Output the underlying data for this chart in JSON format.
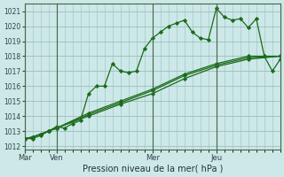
{
  "title": "",
  "xlabel": "Pression niveau de la mer( hPa )",
  "ylabel": "",
  "ylim": [
    1011.8,
    1021.5
  ],
  "yticks": [
    1012,
    1013,
    1014,
    1015,
    1016,
    1017,
    1018,
    1019,
    1020,
    1021
  ],
  "xlim": [
    0,
    192
  ],
  "bg_color": "#cde8e8",
  "grid_color": "#9bbfbf",
  "line_color": "#1a6b1a",
  "day_labels": [
    "Mar",
    "Ven",
    "Mer",
    "Jeu"
  ],
  "day_positions": [
    0,
    24,
    96,
    144
  ],
  "series": [
    {
      "x": [
        0,
        6,
        12,
        18,
        24,
        30,
        36,
        42,
        48,
        54,
        60,
        66,
        72,
        78,
        84,
        90,
        96,
        102,
        108,
        114,
        120,
        126,
        132,
        138,
        144,
        150,
        156,
        162,
        168,
        174,
        180,
        186,
        192
      ],
      "y": [
        1012.5,
        1012.5,
        1012.7,
        1013.0,
        1013.3,
        1013.2,
        1013.5,
        1013.7,
        1015.5,
        1016.0,
        1016.0,
        1017.5,
        1017.0,
        1016.9,
        1017.0,
        1018.5,
        1019.2,
        1019.6,
        1020.0,
        1020.2,
        1020.4,
        1019.6,
        1019.2,
        1019.1,
        1021.2,
        1020.6,
        1020.4,
        1020.5,
        1019.9,
        1020.5,
        1018.0,
        1017.0,
        1017.8
      ]
    },
    {
      "x": [
        0,
        6,
        12,
        18,
        24,
        48,
        72,
        96,
        120,
        144,
        168,
        192
      ],
      "y": [
        1012.5,
        1012.6,
        1012.8,
        1013.0,
        1013.2,
        1014.0,
        1014.8,
        1015.5,
        1016.5,
        1017.3,
        1017.8,
        1018.0
      ]
    },
    {
      "x": [
        0,
        6,
        12,
        18,
        24,
        48,
        72,
        96,
        120,
        144,
        168,
        192
      ],
      "y": [
        1012.5,
        1012.6,
        1012.8,
        1013.0,
        1013.2,
        1014.1,
        1014.9,
        1015.7,
        1016.7,
        1017.4,
        1017.9,
        1018.0
      ]
    },
    {
      "x": [
        0,
        6,
        12,
        18,
        24,
        48,
        72,
        96,
        120,
        144,
        168,
        192
      ],
      "y": [
        1012.5,
        1012.6,
        1012.8,
        1013.0,
        1013.2,
        1014.2,
        1015.0,
        1015.8,
        1016.8,
        1017.5,
        1018.0,
        1018.0
      ]
    }
  ]
}
